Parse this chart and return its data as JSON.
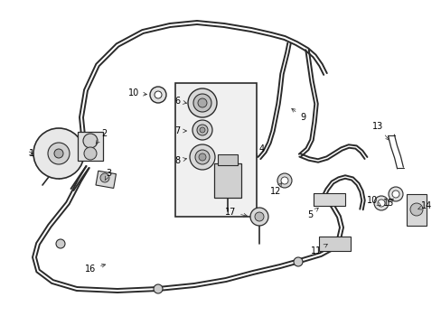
{
  "bg_color": "#ffffff",
  "line_color": "#2a2a2a",
  "label_color": "#000000",
  "fig_width": 4.89,
  "fig_height": 3.6,
  "dpi": 100,
  "pipe_lw": 1.4,
  "thin_lw": 0.9
}
